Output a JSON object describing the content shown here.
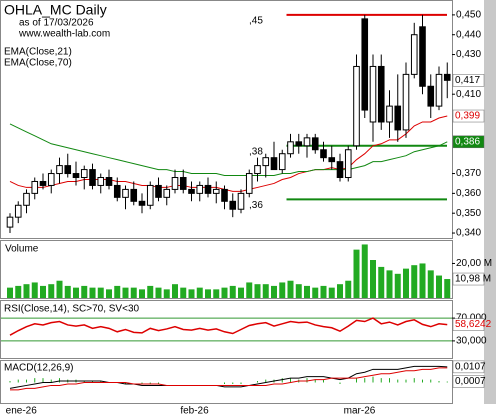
{
  "chart_data": [
    {
      "type": "candlestick",
      "title": "OHLA_MC Daily",
      "subtitle": "as of 17/03/2026",
      "source": "www.wealth-lab.com",
      "categories": [
        null,
        "ene-26",
        null,
        null,
        null,
        null,
        null,
        null,
        null,
        null,
        null,
        null,
        null,
        null,
        null,
        null,
        null,
        null,
        null,
        null,
        null,
        null,
        "feb-26",
        null,
        null,
        null,
        null,
        null,
        null,
        null,
        null,
        null,
        null,
        null,
        null,
        null,
        null,
        null,
        null,
        null,
        null,
        null,
        "mar-26",
        null,
        null,
        null,
        null,
        null,
        null,
        null,
        null,
        null,
        null,
        null
      ],
      "open": [
        0.343,
        0.348,
        0.354,
        0.36,
        0.366,
        0.364,
        0.37,
        0.374,
        0.37,
        0.368,
        0.372,
        0.364,
        0.368,
        0.364,
        0.358,
        0.362,
        0.356,
        0.354,
        0.364,
        0.358,
        0.362,
        0.368,
        0.362,
        0.36,
        0.364,
        0.36,
        0.362,
        0.356,
        0.352,
        0.36,
        0.37,
        0.374,
        0.378,
        0.372,
        0.38,
        0.386,
        0.384,
        0.388,
        0.382,
        0.378,
        0.376,
        0.368,
        0.384,
        0.448,
        0.396,
        0.424,
        0.396,
        0.404,
        0.392,
        0.42,
        0.444,
        0.414,
        0.404,
        0.42
      ],
      "high": [
        0.35,
        0.356,
        0.362,
        0.368,
        0.37,
        0.372,
        0.378,
        0.38,
        0.376,
        0.374,
        0.375,
        0.37,
        0.372,
        0.368,
        0.364,
        0.366,
        0.36,
        0.366,
        0.368,
        0.364,
        0.372,
        0.372,
        0.366,
        0.366,
        0.368,
        0.366,
        0.364,
        0.36,
        0.362,
        0.372,
        0.378,
        0.38,
        0.386,
        0.382,
        0.39,
        0.39,
        0.39,
        0.39,
        0.386,
        0.384,
        0.38,
        0.384,
        0.43,
        0.45,
        0.43,
        0.43,
        0.412,
        0.42,
        0.426,
        0.446,
        0.45,
        0.42,
        0.424,
        0.426
      ],
      "low": [
        0.34,
        0.345,
        0.35,
        0.357,
        0.362,
        0.36,
        0.365,
        0.368,
        0.364,
        0.362,
        0.362,
        0.36,
        0.362,
        0.356,
        0.352,
        0.354,
        0.35,
        0.352,
        0.356,
        0.354,
        0.36,
        0.36,
        0.356,
        0.356,
        0.358,
        0.355,
        0.352,
        0.348,
        0.35,
        0.358,
        0.366,
        0.368,
        0.372,
        0.37,
        0.378,
        0.38,
        0.378,
        0.38,
        0.376,
        0.372,
        0.366,
        0.366,
        0.382,
        0.398,
        0.386,
        0.392,
        0.388,
        0.386,
        0.388,
        0.418,
        0.41,
        0.398,
        0.402,
        0.408
      ],
      "close": [
        0.348,
        0.354,
        0.36,
        0.366,
        0.364,
        0.37,
        0.374,
        0.37,
        0.368,
        0.372,
        0.364,
        0.368,
        0.364,
        0.358,
        0.362,
        0.356,
        0.354,
        0.364,
        0.358,
        0.362,
        0.368,
        0.362,
        0.36,
        0.364,
        0.36,
        0.362,
        0.356,
        0.352,
        0.36,
        0.37,
        0.374,
        0.378,
        0.372,
        0.38,
        0.386,
        0.384,
        0.388,
        0.382,
        0.378,
        0.376,
        0.368,
        0.382,
        0.424,
        0.402,
        0.424,
        0.396,
        0.404,
        0.392,
        0.42,
        0.44,
        0.414,
        0.404,
        0.42,
        0.417
      ],
      "close_last_label": "0,417",
      "series": [
        {
          "name": "EMA(Close,21)",
          "color": "#dd0000",
          "last_label": "0,399",
          "values": [
            0.366,
            0.364,
            0.363,
            0.363,
            0.363,
            0.364,
            0.365,
            0.366,
            0.366,
            0.367,
            0.367,
            0.367,
            0.367,
            0.366,
            0.366,
            0.365,
            0.364,
            0.364,
            0.363,
            0.363,
            0.364,
            0.364,
            0.363,
            0.363,
            0.363,
            0.363,
            0.362,
            0.361,
            0.361,
            0.362,
            0.363,
            0.364,
            0.365,
            0.367,
            0.368,
            0.37,
            0.371,
            0.372,
            0.372,
            0.373,
            0.372,
            0.373,
            0.377,
            0.38,
            0.384,
            0.385,
            0.387,
            0.387,
            0.39,
            0.394,
            0.396,
            0.396,
            0.398,
            0.399
          ]
        },
        {
          "name": "EMA(Close,70)",
          "color": "#118811",
          "last_label": "0,386",
          "values": [
            0.395,
            0.393,
            0.391,
            0.389,
            0.387,
            0.385,
            0.384,
            0.383,
            0.382,
            0.381,
            0.38,
            0.379,
            0.378,
            0.377,
            0.376,
            0.375,
            0.374,
            0.373,
            0.372,
            0.372,
            0.371,
            0.371,
            0.37,
            0.37,
            0.37,
            0.37,
            0.369,
            0.369,
            0.369,
            0.369,
            0.369,
            0.369,
            0.369,
            0.37,
            0.37,
            0.371,
            0.371,
            0.372,
            0.372,
            0.372,
            0.372,
            0.372,
            0.373,
            0.374,
            0.376,
            0.376,
            0.377,
            0.378,
            0.379,
            0.381,
            0.382,
            0.383,
            0.384,
            0.386
          ]
        }
      ],
      "levels": [
        {
          "value": 0.45,
          "label": ",45",
          "color": "#dd0000"
        },
        {
          "value": 0.384,
          "label": ",38",
          "color": "#118811"
        },
        {
          "value": 0.357,
          "label": ",36",
          "color": "#118811"
        }
      ],
      "ylim": [
        0.3375,
        0.457
      ],
      "yticks": [
        {
          "value": 0.45,
          "label": "0,450"
        },
        {
          "value": 0.44,
          "label": "0,440"
        },
        {
          "value": 0.43,
          "label": "0,430"
        },
        {
          "value": 0.41,
          "label": "0,410"
        },
        {
          "value": 0.37,
          "label": "0,370"
        },
        {
          "value": 0.36,
          "label": "0,360"
        },
        {
          "value": 0.35,
          "label": "0,350"
        },
        {
          "value": 0.34,
          "label": "0,340"
        }
      ]
    },
    {
      "type": "bar",
      "title": "Volume",
      "color": "#22aa22",
      "values": [
        6,
        7,
        8,
        9,
        7,
        8,
        10,
        7,
        6,
        7,
        6,
        6,
        5,
        7,
        6,
        6,
        5,
        7,
        6,
        5,
        8,
        6,
        5,
        6,
        5,
        5,
        6,
        7,
        6,
        9,
        8,
        8,
        7,
        9,
        10,
        8,
        7,
        6,
        7,
        6,
        8,
        10,
        28,
        31,
        22,
        18,
        16,
        14,
        17,
        19,
        20,
        16,
        13,
        10.98
      ],
      "last_label": "10,98 M",
      "ylim": [
        0,
        33
      ],
      "yticks": [
        {
          "value": 20,
          "label": "20,00 M"
        }
      ]
    },
    {
      "type": "line",
      "title": "RSI(Close,14), SC>70, SV<30",
      "color": "#dd0000",
      "values": [
        40,
        48,
        55,
        60,
        58,
        62,
        64,
        58,
        56,
        58,
        52,
        55,
        52,
        46,
        50,
        45,
        44,
        52,
        48,
        51,
        55,
        50,
        49,
        52,
        49,
        51,
        46,
        43,
        50,
        57,
        60,
        62,
        56,
        60,
        64,
        62,
        63,
        58,
        55,
        53,
        47,
        56,
        66,
        64,
        70,
        60,
        63,
        58,
        64,
        67,
        59,
        55,
        60,
        58.6242
      ],
      "last_label": "58,6242",
      "ylim": [
        0,
        100
      ],
      "yticks": [
        {
          "value": 70,
          "label": "70,000"
        },
        {
          "value": 30,
          "label": "30,000"
        }
      ]
    },
    {
      "type": "macd",
      "title": "MACD(12,26,9)",
      "series": [
        {
          "color": "#000000",
          "last_label": "0,0107",
          "values": [
            -0.004,
            -0.003,
            -0.002,
            -0.001,
            0,
            0,
            0.001,
            0.001,
            0.001,
            0.001,
            0.001,
            0.001,
            0,
            0,
            -0.001,
            -0.001,
            -0.002,
            -0.002,
            -0.002,
            -0.002,
            -0.002,
            -0.002,
            -0.002,
            -0.002,
            -0.002,
            -0.002,
            -0.003,
            -0.003,
            -0.003,
            -0.002,
            -0.001,
            0,
            0.001,
            0.002,
            0.003,
            0.003,
            0.004,
            0.004,
            0.004,
            0.003,
            0.002,
            0.003,
            0.006,
            0.007,
            0.009,
            0.009,
            0.009,
            0.009,
            0.01,
            0.011,
            0.011,
            0.011,
            0.011,
            0.0107
          ]
        },
        {
          "color": "#dd0000",
          "values": [
            -0.005,
            -0.005,
            -0.004,
            -0.004,
            -0.003,
            -0.002,
            -0.002,
            -0.001,
            -0.001,
            0,
            0,
            0,
            0,
            0,
            0,
            -0.001,
            -0.001,
            -0.001,
            -0.001,
            -0.002,
            -0.002,
            -0.002,
            -0.002,
            -0.002,
            -0.002,
            -0.002,
            -0.002,
            -0.002,
            -0.002,
            -0.002,
            -0.002,
            -0.002,
            -0.001,
            -0.001,
            0,
            0.001,
            0.001,
            0.002,
            0.002,
            0.003,
            0.003,
            0.003,
            0.003,
            0.004,
            0.005,
            0.006,
            0.006,
            0.007,
            0.008,
            0.008,
            0.009,
            0.009,
            0.01,
            0.01
          ]
        }
      ],
      "histogram": {
        "color": "#22aa22",
        "last_label": "0,0007",
        "values": [
          0.001,
          0.002,
          0.002,
          0.003,
          0.003,
          0.002,
          0.003,
          0.002,
          0.002,
          0.001,
          0.001,
          0.001,
          0,
          0,
          -0.001,
          0,
          -0.001,
          -0.001,
          -0.001,
          0,
          0,
          0,
          0,
          0,
          0,
          0,
          -0.001,
          -0.001,
          -0.001,
          0,
          0.001,
          0.002,
          0.002,
          0.003,
          0.003,
          0.002,
          0.003,
          0.002,
          0.002,
          0,
          -0.001,
          0,
          0.003,
          0.003,
          0.004,
          0.003,
          0.003,
          0.002,
          0.002,
          0.003,
          0.002,
          0.002,
          0.001,
          0.0007
        ]
      },
      "ylim": [
        -0.014,
        0.0147
      ]
    }
  ]
}
